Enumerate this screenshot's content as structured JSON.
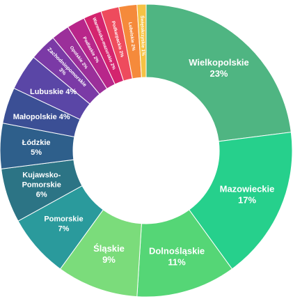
{
  "chart_data": {
    "type": "pie",
    "donut": true,
    "legend": "none",
    "slices": [
      {
        "name": "Wielkopolskie",
        "value": 23,
        "label": "23%",
        "color": "#4fb582"
      },
      {
        "name": "Mazowieckie",
        "value": 17,
        "label": "17%",
        "color": "#26d08c"
      },
      {
        "name": "Dolnośląskie",
        "value": 11,
        "label": "11%",
        "color": "#55d676"
      },
      {
        "name": "Śląskie",
        "value": 9,
        "label": "9%",
        "color": "#7bdc7b"
      },
      {
        "name": "Pomorskie",
        "value": 7,
        "label": "7%",
        "color": "#2a9a9c"
      },
      {
        "name": "Kujawsko-Pomorskie",
        "value": 6,
        "label": "6%",
        "color": "#2c7485"
      },
      {
        "name": "Łódzkie",
        "value": 5,
        "label": "5%",
        "color": "#2e5f8b"
      },
      {
        "name": "Małopolskie",
        "value": 4,
        "label": "4%",
        "color": "#3b4f95"
      },
      {
        "name": "Lubuskie",
        "value": 4,
        "label": "4%",
        "color": "#5a46a6"
      },
      {
        "name": "Zachodniopomorskie",
        "value": 3,
        "label": "3%",
        "color": "#7b3aa6"
      },
      {
        "name": "Opolskie",
        "value": 2,
        "label": "2%",
        "color": "#9b2f9a"
      },
      {
        "name": "Podlaskie",
        "value": 2,
        "label": "2%",
        "color": "#b8268a"
      },
      {
        "name": "Warmińsko-mazurskie",
        "value": 2,
        "label": "2%",
        "color": "#d4246e"
      },
      {
        "name": "Podkarpackie",
        "value": 2,
        "label": "2%",
        "color": "#ee4b5d"
      },
      {
        "name": "Lubelskie",
        "value": 2,
        "label": "2%",
        "color": "#f58a3b"
      },
      {
        "name": "Świętokrzyskie",
        "value": 1,
        "label": "1%",
        "color": "#f6c244"
      }
    ]
  }
}
